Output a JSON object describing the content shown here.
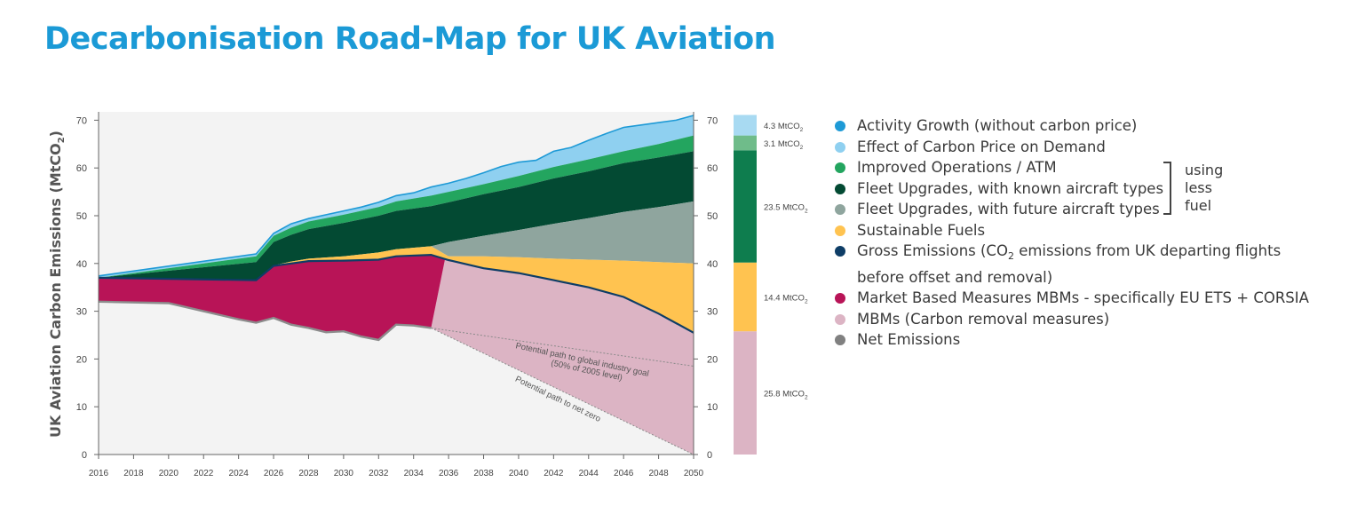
{
  "title": "Decarbonisation Road-Map for UK Aviation",
  "chart_data": {
    "type": "area",
    "title": "Decarbonisation Road-Map for UK Aviation",
    "ylabel_main": "UK Aviation Carbon Emissions (MtCO",
    "ylabel_sub": "2",
    "ylabel_end": ")",
    "ylim": [
      0,
      72
    ],
    "yticks": [
      0,
      10,
      20,
      30,
      40,
      50,
      60,
      70
    ],
    "xlim": [
      2016,
      2050
    ],
    "xticks": [
      2016,
      2018,
      2020,
      2022,
      2024,
      2026,
      2028,
      2030,
      2032,
      2034,
      2036,
      2038,
      2040,
      2042,
      2044,
      2046,
      2048,
      2050
    ],
    "series": [
      {
        "name": "Net Emissions",
        "color": "#8c8c8c",
        "x": [
          2016,
          2020,
          2022,
          2024,
          2025,
          2026,
          2027,
          2028,
          2029,
          2030,
          2031,
          2032,
          2033,
          2034,
          2035
        ],
        "y": [
          32,
          31.7,
          30,
          28.3,
          27.6,
          28.6,
          27.2,
          26.5,
          25.6,
          25.8,
          24.7,
          24,
          27.2,
          27,
          26.5
        ]
      },
      {
        "name": "Market Based Measures MBMs - specifically EU ETS + CORSIA",
        "color": "#b81457",
        "x": [
          2016,
          2025,
          2026,
          2027,
          2028,
          2030,
          2032,
          2033,
          2035,
          2035.8
        ],
        "y": [
          37,
          36.5,
          39.5,
          40,
          40.5,
          40.6,
          40.8,
          41.5,
          41.8,
          41
        ]
      },
      {
        "name": "Gross Emissions",
        "color": "#0e3d66",
        "x": [
          2016,
          2025,
          2026,
          2027,
          2028,
          2030,
          2032,
          2033,
          2035,
          2036,
          2038,
          2040,
          2042,
          2044,
          2046,
          2048,
          2050
        ],
        "y": [
          37,
          36.5,
          39.5,
          40,
          40.5,
          40.6,
          40.8,
          41.5,
          41.8,
          40.7,
          39,
          38,
          36.5,
          35,
          33,
          29.5,
          25.5
        ]
      },
      {
        "name": "Sustainable Fuels",
        "color": "#ffc350",
        "x": [
          2016,
          2025,
          2026,
          2027,
          2028,
          2030,
          2032,
          2033,
          2035,
          2036,
          2038,
          2040,
          2042,
          2044,
          2046,
          2048,
          2050
        ],
        "y": [
          37,
          36.5,
          39.6,
          40.4,
          41,
          41.5,
          42.3,
          43,
          43.6,
          41.5,
          41.5,
          41.3,
          41,
          40.8,
          40.6,
          40.3,
          40
        ]
      },
      {
        "name": "Fleet Upgrades, with future aircraft types",
        "color": "#8fa59e",
        "x": [
          2016,
          2025,
          2026,
          2027,
          2028,
          2030,
          2032,
          2033,
          2035,
          2036,
          2038,
          2040,
          2042,
          2044,
          2046,
          2048,
          2050
        ],
        "y": [
          37,
          36.5,
          39.6,
          40.4,
          41,
          41.5,
          42.3,
          43,
          43.6,
          44.5,
          45.8,
          47,
          48.3,
          49.5,
          50.8,
          51.8,
          53
        ]
      },
      {
        "name": "Fleet Upgrades, with known aircraft types",
        "color": "#034a33",
        "x": [
          2016,
          2025,
          2026,
          2027,
          2028,
          2030,
          2032,
          2033,
          2035,
          2036,
          2038,
          2040,
          2042,
          2044,
          2046,
          2048,
          2050
        ],
        "y": [
          37,
          40.3,
          44.5,
          46,
          47.2,
          48.5,
          50,
          51,
          52,
          52.8,
          54.5,
          56,
          57.8,
          59.3,
          61,
          62.2,
          63.5
        ]
      },
      {
        "name": "Improved Operations / ATM",
        "color": "#23a55f",
        "x": [
          2016,
          2025,
          2026,
          2027,
          2028,
          2030,
          2032,
          2033,
          2035,
          2036,
          2038,
          2040,
          2042,
          2044,
          2046,
          2048,
          2050
        ],
        "y": [
          37,
          41.5,
          45.8,
          47.5,
          48.8,
          50.2,
          51.8,
          53,
          54.2,
          55,
          56.6,
          58.3,
          60.2,
          61.8,
          63.5,
          65,
          66.8
        ]
      },
      {
        "name": "Effect of Carbon Price on Demand",
        "color": "#8fd0f0",
        "x": [
          2016,
          2025,
          2026,
          2027,
          2028,
          2029,
          2030,
          2031,
          2032,
          2033,
          2034,
          2035,
          2036,
          2037,
          2038,
          2039,
          2040,
          2041,
          2042,
          2043,
          2044,
          2045,
          2046,
          2047,
          2048,
          2049,
          2050
        ],
        "y": [
          37.4,
          42,
          46.3,
          48.3,
          49.4,
          50.2,
          51,
          51.8,
          52.8,
          54.2,
          54.8,
          56,
          56.8,
          57.8,
          59,
          60.3,
          61.2,
          61.6,
          63.5,
          64.3,
          65.8,
          67.2,
          68.5,
          69,
          69.5,
          70,
          71
        ]
      },
      {
        "name": "Activity Growth (without carbon price)",
        "color": "#1e9ad6"
      }
    ],
    "annotations": [
      {
        "text_line1": "Potential path to global industry goal",
        "text_line2": "(50% of 2005 level)",
        "x": [
          2035,
          2050
        ],
        "y": [
          26.5,
          18.5
        ]
      },
      {
        "text": "Potential path to net zero",
        "x": [
          2035,
          2050
        ],
        "y": [
          26.5,
          0
        ]
      }
    ],
    "bar_2050": [
      {
        "label": "25.8 MtCO",
        "sub": "2",
        "value": 25.8,
        "color": "#dcb4c4"
      },
      {
        "label": "14.4 MtCO",
        "sub": "2",
        "value": 14.4,
        "color": "#ffc350"
      },
      {
        "label": "23.5 MtCO",
        "sub": "2",
        "value": 23.5,
        "color": "#0e7d4e"
      },
      {
        "label": "3.1 MtCO",
        "sub": "2",
        "value": 3.1,
        "color": "#6fbc8a"
      },
      {
        "label": "4.3 MtCO",
        "sub": "2",
        "value": 4.3,
        "color": "#a8daf2"
      }
    ]
  },
  "legend": [
    {
      "label": "Activity Growth (without carbon price)",
      "color": "#1e9ad6"
    },
    {
      "label": "Effect of Carbon Price on Demand",
      "color": "#8fd0f0"
    },
    {
      "label": "Improved Operations / ATM",
      "color": "#23a55f"
    },
    {
      "label": "Fleet Upgrades, with known aircraft types",
      "color": "#034a33"
    },
    {
      "label": "Fleet Upgrades, with future aircraft types",
      "color": "#8fa59e"
    },
    {
      "label": "Sustainable Fuels",
      "color": "#ffc350"
    },
    {
      "label_pre": "Gross Emissions (CO",
      "label_sub": "2",
      "label_post": " emissions from UK departing flights before offset and removal)",
      "color": "#0e3d66"
    },
    {
      "label": "Market Based Measures MBMs - specifically EU ETS + CORSIA",
      "color": "#b81457"
    },
    {
      "label": "MBMs (Carbon removal measures)",
      "color": "#dcb4c4"
    },
    {
      "label": "Net Emissions",
      "color": "#808080"
    }
  ],
  "brace_label": [
    "using",
    "less",
    "fuel"
  ]
}
